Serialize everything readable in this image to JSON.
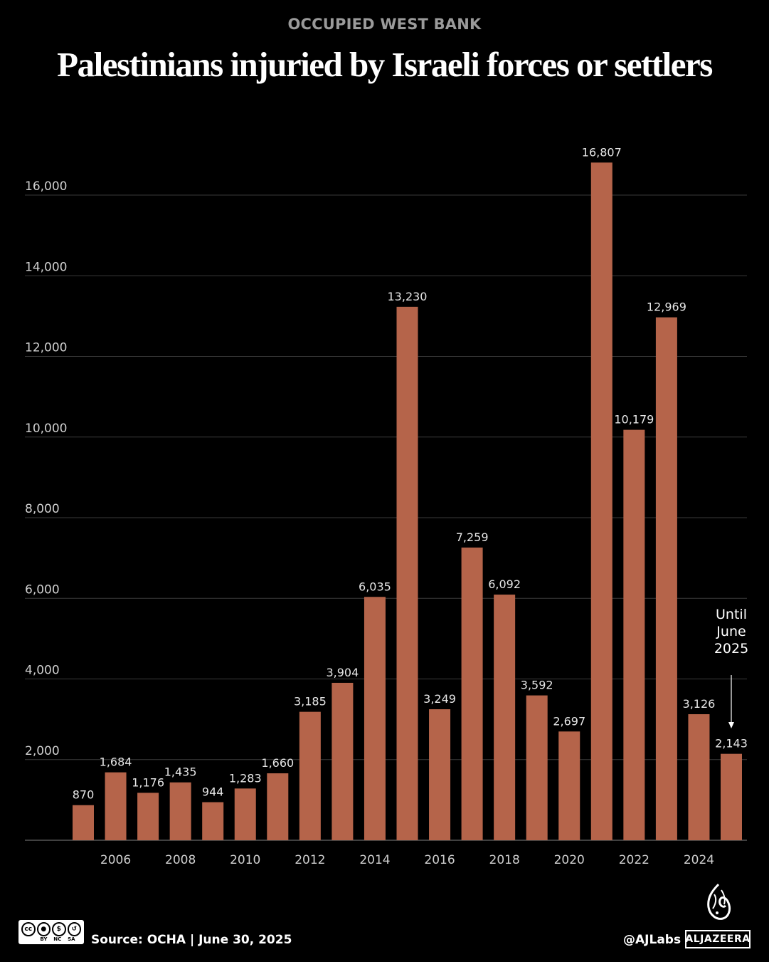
{
  "header": {
    "kicker": "OCCUPIED WEST BANK",
    "title": "Palestinians injuried by Israeli forces or settlers"
  },
  "chart_data": {
    "type": "bar",
    "title": "Palestinians injuried by Israeli forces or settlers",
    "subtitle": "OCCUPIED WEST BANK",
    "xlabel": "",
    "ylabel": "",
    "categories": [
      "2005",
      "2006",
      "2007",
      "2008",
      "2009",
      "2010",
      "2011",
      "2012",
      "2013",
      "2014",
      "2015",
      "2016",
      "2017",
      "2018",
      "2019",
      "2020",
      "2021",
      "2022",
      "2023",
      "2024",
      "2025"
    ],
    "values": [
      870,
      1684,
      1176,
      1435,
      944,
      1283,
      1660,
      3185,
      3904,
      6035,
      13230,
      3249,
      7259,
      6092,
      3592,
      2697,
      16807,
      10179,
      12969,
      3126,
      2143
    ],
    "value_labels": [
      "870",
      "1,684",
      "1,176",
      "1,435",
      "944",
      "1,283",
      "1,660",
      "3,185",
      "3,904",
      "6,035",
      "13,230",
      "3,249",
      "7,259",
      "6,092",
      "3,592",
      "2,697",
      "16,807",
      "10,179",
      "12,969",
      "3,126",
      "2,143"
    ],
    "x_tick_labels": [
      "2006",
      "2008",
      "2010",
      "2012",
      "2014",
      "2016",
      "2018",
      "2020",
      "2022",
      "2024"
    ],
    "y_tick_values": [
      2000,
      4000,
      6000,
      8000,
      10000,
      12000,
      14000,
      16000
    ],
    "y_tick_labels": [
      "2,000",
      "4,000",
      "6,000",
      "8,000",
      "10,000",
      "12,000",
      "14,000",
      "16,000"
    ],
    "ylim": [
      0,
      16807
    ],
    "grid": true,
    "annotation": {
      "lines": [
        "Until",
        "June",
        "2025"
      ],
      "target": "2025"
    },
    "bar_color": "#b5644a"
  },
  "footer": {
    "source": "Source:  OCHA | June 30, 2025",
    "handle": "@AJLabs",
    "brand": "ALJAZEERA",
    "license_labels": [
      "BY",
      "NC",
      "SA"
    ],
    "license_glyph": "cc"
  }
}
